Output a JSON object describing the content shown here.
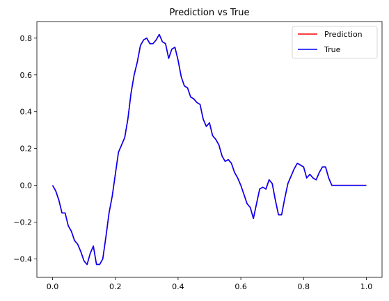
{
  "chart_data": {
    "type": "line",
    "title": "Prediction vs True",
    "xlabel": "",
    "ylabel": "",
    "xlim": [
      -0.05,
      1.05
    ],
    "ylim": [
      -0.5,
      0.89
    ],
    "xticks": [
      0.0,
      0.2,
      0.4,
      0.6,
      0.8,
      1.0
    ],
    "xtick_labels": [
      "0.0",
      "0.2",
      "0.4",
      "0.6",
      "0.8",
      "1.0"
    ],
    "yticks": [
      -0.4,
      -0.2,
      0.0,
      0.2,
      0.4,
      0.6,
      0.8
    ],
    "ytick_labels": [
      "−0.4",
      "−0.2",
      "0.0",
      "0.2",
      "0.4",
      "0.6",
      "0.8"
    ],
    "grid": false,
    "legend_position": "top-right",
    "x": [
      0.0,
      0.01,
      0.02,
      0.03,
      0.04,
      0.05,
      0.06,
      0.07,
      0.08,
      0.09,
      0.1,
      0.11,
      0.12,
      0.13,
      0.14,
      0.15,
      0.16,
      0.17,
      0.18,
      0.19,
      0.2,
      0.21,
      0.22,
      0.23,
      0.24,
      0.25,
      0.26,
      0.27,
      0.28,
      0.29,
      0.3,
      0.31,
      0.32,
      0.33,
      0.34,
      0.35,
      0.36,
      0.37,
      0.38,
      0.39,
      0.4,
      0.41,
      0.42,
      0.43,
      0.44,
      0.45,
      0.46,
      0.47,
      0.48,
      0.49,
      0.5,
      0.51,
      0.52,
      0.53,
      0.54,
      0.55,
      0.56,
      0.57,
      0.58,
      0.59,
      0.6,
      0.61,
      0.62,
      0.63,
      0.64,
      0.65,
      0.66,
      0.67,
      0.68,
      0.69,
      0.7,
      0.71,
      0.72,
      0.73,
      0.74,
      0.75,
      0.76,
      0.77,
      0.78,
      0.79,
      0.8,
      0.81,
      0.82,
      0.83,
      0.84,
      0.85,
      0.86,
      0.87,
      0.88,
      0.89,
      0.9,
      0.91,
      0.92,
      0.93,
      0.94,
      0.95,
      0.96,
      0.97,
      0.98,
      0.99,
      1.0
    ],
    "series": [
      {
        "name": "Prediction",
        "color": "#ff0000",
        "values": [
          0.0,
          -0.03,
          -0.08,
          -0.15,
          -0.15,
          -0.22,
          -0.25,
          -0.3,
          -0.32,
          -0.36,
          -0.41,
          -0.43,
          -0.37,
          -0.33,
          -0.43,
          -0.43,
          -0.4,
          -0.28,
          -0.15,
          -0.06,
          0.06,
          0.18,
          0.22,
          0.26,
          0.36,
          0.5,
          0.6,
          0.67,
          0.76,
          0.79,
          0.8,
          0.77,
          0.77,
          0.79,
          0.82,
          0.78,
          0.77,
          0.69,
          0.74,
          0.75,
          0.68,
          0.59,
          0.54,
          0.53,
          0.48,
          0.47,
          0.45,
          0.44,
          0.36,
          0.32,
          0.34,
          0.27,
          0.25,
          0.22,
          0.16,
          0.13,
          0.14,
          0.12,
          0.07,
          0.04,
          0.0,
          -0.05,
          -0.1,
          -0.12,
          -0.18,
          -0.1,
          -0.02,
          -0.01,
          -0.02,
          0.03,
          0.01,
          -0.08,
          -0.16,
          -0.16,
          -0.07,
          0.01,
          0.05,
          0.09,
          0.12,
          0.11,
          0.1,
          0.04,
          0.06,
          0.04,
          0.03,
          0.07,
          0.1,
          0.1,
          0.04,
          0.0,
          0.0,
          0.0,
          0.0,
          0.0,
          0.0,
          0.0,
          0.0,
          0.0,
          0.0,
          0.0,
          0.0
        ]
      },
      {
        "name": "True",
        "color": "#0000ff",
        "values": [
          0.0,
          -0.03,
          -0.08,
          -0.15,
          -0.15,
          -0.22,
          -0.25,
          -0.3,
          -0.32,
          -0.36,
          -0.41,
          -0.43,
          -0.37,
          -0.33,
          -0.43,
          -0.43,
          -0.4,
          -0.28,
          -0.15,
          -0.06,
          0.06,
          0.18,
          0.22,
          0.26,
          0.36,
          0.5,
          0.6,
          0.67,
          0.76,
          0.79,
          0.8,
          0.77,
          0.77,
          0.79,
          0.82,
          0.78,
          0.77,
          0.69,
          0.74,
          0.75,
          0.68,
          0.59,
          0.54,
          0.53,
          0.48,
          0.47,
          0.45,
          0.44,
          0.36,
          0.32,
          0.34,
          0.27,
          0.25,
          0.22,
          0.16,
          0.13,
          0.14,
          0.12,
          0.07,
          0.04,
          0.0,
          -0.05,
          -0.1,
          -0.12,
          -0.18,
          -0.1,
          -0.02,
          -0.01,
          -0.02,
          0.03,
          0.01,
          -0.08,
          -0.16,
          -0.16,
          -0.07,
          0.01,
          0.05,
          0.09,
          0.12,
          0.11,
          0.1,
          0.04,
          0.06,
          0.04,
          0.03,
          0.07,
          0.1,
          0.1,
          0.04,
          0.0,
          0.0,
          0.0,
          0.0,
          0.0,
          0.0,
          0.0,
          0.0,
          0.0,
          0.0,
          0.0,
          0.0
        ]
      }
    ]
  }
}
